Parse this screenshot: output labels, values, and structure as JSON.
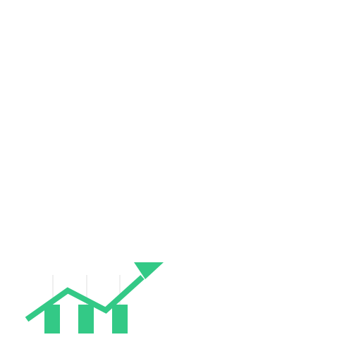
{
  "graphic": {
    "icon": "growth-chart-arrow-icon",
    "accent_color": "#33c986",
    "wick_color": "#e4e4e4",
    "background_color": "#ffffff"
  }
}
